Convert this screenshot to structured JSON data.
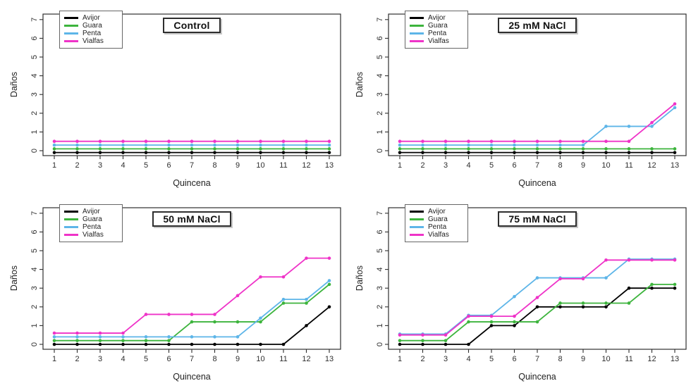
{
  "figure": {
    "y_ticks": [
      0,
      1,
      2,
      3,
      4,
      5,
      6,
      7
    ],
    "x_ticks": [
      1,
      2,
      3,
      4,
      5,
      6,
      7,
      8,
      9,
      10,
      11,
      12,
      13
    ],
    "series_colors": {
      "Avijor": "#000000",
      "Guara": "#3db43d",
      "Penta": "#5db5e8",
      "Vialfas": "#ef33c8"
    }
  },
  "chart_data": [
    {
      "type": "line",
      "title": "Control",
      "xlabel": "Quincena",
      "ylabel": "Daños",
      "ylim": [
        0,
        7
      ],
      "grid": false,
      "legend_position": "top-left",
      "x": [
        1,
        2,
        3,
        4,
        5,
        6,
        7,
        8,
        9,
        10,
        11,
        12,
        13
      ],
      "y_ticks": [
        0,
        1,
        2,
        3,
        4,
        5,
        6,
        7
      ],
      "series": [
        {
          "name": "Avijor",
          "color": "#000000",
          "values": [
            -0.1,
            -0.1,
            -0.1,
            -0.1,
            -0.1,
            -0.1,
            -0.1,
            -0.1,
            -0.1,
            -0.1,
            -0.1,
            -0.1,
            -0.1
          ]
        },
        {
          "name": "Guara",
          "color": "#3db43d",
          "values": [
            0.1,
            0.1,
            0.1,
            0.1,
            0.1,
            0.1,
            0.1,
            0.1,
            0.1,
            0.1,
            0.1,
            0.1,
            0.1
          ]
        },
        {
          "name": "Penta",
          "color": "#5db5e8",
          "values": [
            0.3,
            0.3,
            0.3,
            0.3,
            0.3,
            0.3,
            0.3,
            0.3,
            0.3,
            0.3,
            0.3,
            0.3,
            0.3
          ]
        },
        {
          "name": "Vialfas",
          "color": "#ef33c8",
          "values": [
            0.5,
            0.5,
            0.5,
            0.5,
            0.5,
            0.5,
            0.5,
            0.5,
            0.5,
            0.5,
            0.5,
            0.5,
            0.5
          ]
        }
      ]
    },
    {
      "type": "line",
      "title": "25 mM NaCl",
      "xlabel": "Quincena",
      "ylabel": "Daños",
      "ylim": [
        0,
        7
      ],
      "grid": false,
      "legend_position": "top-left",
      "x": [
        1,
        2,
        3,
        4,
        5,
        6,
        7,
        8,
        9,
        10,
        11,
        12,
        13
      ],
      "y_ticks": [
        0,
        1,
        2,
        3,
        4,
        5,
        6,
        7
      ],
      "series": [
        {
          "name": "Avijor",
          "color": "#000000",
          "values": [
            -0.1,
            -0.1,
            -0.1,
            -0.1,
            -0.1,
            -0.1,
            -0.1,
            -0.1,
            -0.1,
            -0.1,
            -0.1,
            -0.1,
            -0.1
          ]
        },
        {
          "name": "Guara",
          "color": "#3db43d",
          "values": [
            0.1,
            0.1,
            0.1,
            0.1,
            0.1,
            0.1,
            0.1,
            0.1,
            0.1,
            0.1,
            0.1,
            0.1,
            0.1
          ]
        },
        {
          "name": "Penta",
          "color": "#5db5e8",
          "values": [
            0.3,
            0.3,
            0.3,
            0.3,
            0.3,
            0.3,
            0.3,
            0.3,
            0.3,
            1.3,
            1.3,
            1.3,
            2.3
          ]
        },
        {
          "name": "Vialfas",
          "color": "#ef33c8",
          "values": [
            0.5,
            0.5,
            0.5,
            0.5,
            0.5,
            0.5,
            0.5,
            0.5,
            0.5,
            0.5,
            0.5,
            1.5,
            2.5
          ]
        }
      ]
    },
    {
      "type": "line",
      "title": "50 mM NaCl",
      "xlabel": "Quincena",
      "ylabel": "Daños",
      "ylim": [
        0,
        7
      ],
      "grid": false,
      "legend_position": "top-left",
      "x": [
        1,
        2,
        3,
        4,
        5,
        6,
        7,
        8,
        9,
        10,
        11,
        12,
        13
      ],
      "y_ticks": [
        0,
        1,
        2,
        3,
        4,
        5,
        6,
        7
      ],
      "series": [
        {
          "name": "Avijor",
          "color": "#000000",
          "values": [
            0,
            0,
            0,
            0,
            0,
            0,
            0,
            0,
            0,
            0,
            0,
            1,
            2
          ]
        },
        {
          "name": "Guara",
          "color": "#3db43d",
          "values": [
            0.2,
            0.2,
            0.2,
            0.2,
            0.2,
            0.2,
            1.2,
            1.2,
            1.2,
            1.2,
            2.2,
            2.2,
            3.2
          ]
        },
        {
          "name": "Penta",
          "color": "#5db5e8",
          "values": [
            0.4,
            0.4,
            0.4,
            0.4,
            0.4,
            0.4,
            0.4,
            0.4,
            0.4,
            1.4,
            2.4,
            2.4,
            3.4
          ]
        },
        {
          "name": "Vialfas",
          "color": "#ef33c8",
          "values": [
            0.6,
            0.6,
            0.6,
            0.6,
            1.6,
            1.6,
            1.6,
            1.6,
            2.6,
            3.6,
            3.6,
            4.6,
            4.6
          ]
        }
      ]
    },
    {
      "type": "line",
      "title": "75 mM NaCl",
      "xlabel": "Quincena",
      "ylabel": "Daños",
      "ylim": [
        0,
        7
      ],
      "grid": false,
      "legend_position": "top-left",
      "x": [
        1,
        2,
        3,
        4,
        5,
        6,
        7,
        8,
        9,
        10,
        11,
        12,
        13
      ],
      "y_ticks": [
        0,
        1,
        2,
        3,
        4,
        5,
        6,
        7
      ],
      "series": [
        {
          "name": "Avijor",
          "color": "#000000",
          "values": [
            0,
            0,
            0,
            0,
            1,
            1,
            2,
            2,
            2,
            2,
            3,
            3,
            3
          ]
        },
        {
          "name": "Guara",
          "color": "#3db43d",
          "values": [
            0.2,
            0.2,
            0.2,
            1.2,
            1.2,
            1.2,
            1.2,
            2.2,
            2.2,
            2.2,
            2.2,
            3.2,
            3.2
          ]
        },
        {
          "name": "Penta",
          "color": "#5db5e8",
          "values": [
            0.55,
            0.55,
            0.55,
            1.55,
            1.55,
            2.55,
            3.55,
            3.55,
            3.55,
            3.55,
            4.55,
            4.55,
            4.55
          ]
        },
        {
          "name": "Vialfas",
          "color": "#ef33c8",
          "values": [
            0.5,
            0.5,
            0.5,
            1.5,
            1.5,
            1.5,
            2.5,
            3.5,
            3.5,
            4.5,
            4.5,
            4.5,
            4.5
          ]
        }
      ]
    }
  ]
}
